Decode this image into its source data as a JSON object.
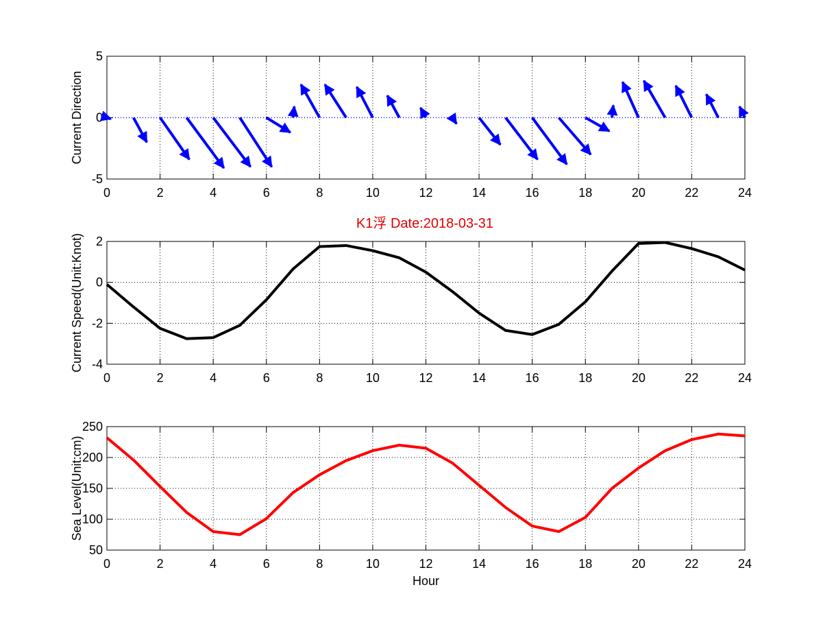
{
  "figure_title": "K1浮    Date:2018-03-31",
  "chart_data": [
    {
      "type": "quiver",
      "ylabel": "Current Direction",
      "xlabel": "",
      "xlim": [
        0,
        24
      ],
      "ylim": [
        -5,
        5
      ],
      "xticks": [
        0,
        2,
        4,
        6,
        8,
        10,
        12,
        14,
        16,
        18,
        20,
        22,
        24
      ],
      "yticks": [
        -5,
        0,
        5
      ],
      "grid": true,
      "color": "#0000ff",
      "arrows": [
        {
          "x": 0,
          "u": 0.15,
          "v": -0.1
        },
        {
          "x": 1,
          "u": 0.5,
          "v": -2.0
        },
        {
          "x": 2,
          "u": 1.1,
          "v": -3.4
        },
        {
          "x": 3,
          "u": 1.4,
          "v": -4.1
        },
        {
          "x": 4,
          "u": 1.4,
          "v": -4.0
        },
        {
          "x": 5,
          "u": 1.2,
          "v": -4.0
        },
        {
          "x": 6,
          "u": 0.9,
          "v": -1.2
        },
        {
          "x": 7,
          "u": 0.05,
          "v": 0.9
        },
        {
          "x": 8,
          "u": -0.7,
          "v": 2.7
        },
        {
          "x": 9,
          "u": -0.8,
          "v": 2.7
        },
        {
          "x": 10,
          "u": -0.6,
          "v": 2.5
        },
        {
          "x": 11,
          "u": -0.45,
          "v": 1.8
        },
        {
          "x": 12,
          "u": -0.2,
          "v": 0.8
        },
        {
          "x": 13,
          "u": 0.15,
          "v": -0.5
        },
        {
          "x": 14,
          "u": 0.8,
          "v": -2.2
        },
        {
          "x": 15,
          "u": 1.2,
          "v": -3.4
        },
        {
          "x": 16,
          "u": 1.3,
          "v": -3.8
        },
        {
          "x": 17,
          "u": 1.2,
          "v": -3.0
        },
        {
          "x": 18,
          "u": 0.9,
          "v": -1.1
        },
        {
          "x": 19,
          "u": 0.05,
          "v": 1.0
        },
        {
          "x": 20,
          "u": -0.6,
          "v": 2.9
        },
        {
          "x": 21,
          "u": -0.8,
          "v": 3.0
        },
        {
          "x": 22,
          "u": -0.6,
          "v": 2.6
        },
        {
          "x": 23,
          "u": -0.45,
          "v": 1.9
        },
        {
          "x": 24,
          "u": -0.2,
          "v": 0.9
        }
      ]
    },
    {
      "type": "line",
      "ylabel": "Current Speed(Unit:Knot)",
      "xlabel": "",
      "xlim": [
        0,
        24
      ],
      "ylim": [
        -4,
        2
      ],
      "xticks": [
        0,
        2,
        4,
        6,
        8,
        10,
        12,
        14,
        16,
        18,
        20,
        22,
        24
      ],
      "yticks": [
        -4,
        -2,
        0,
        2
      ],
      "grid": true,
      "color": "#000000",
      "x": [
        0,
        1,
        2,
        3,
        4,
        5,
        6,
        7,
        8,
        9,
        10,
        11,
        12,
        13,
        14,
        15,
        16,
        17,
        18,
        19,
        20,
        21,
        22,
        23,
        24
      ],
      "y": [
        -0.1,
        -1.2,
        -2.25,
        -2.75,
        -2.7,
        -2.1,
        -0.85,
        0.65,
        1.75,
        1.8,
        1.55,
        1.2,
        0.5,
        -0.45,
        -1.5,
        -2.35,
        -2.55,
        -2.05,
        -0.95,
        0.55,
        1.9,
        1.95,
        1.65,
        1.25,
        0.6
      ]
    },
    {
      "type": "line",
      "ylabel": "Sea Level(Unit:cm)",
      "xlabel": "Hour",
      "xlim": [
        0,
        24
      ],
      "ylim": [
        50,
        250
      ],
      "xticks": [
        0,
        2,
        4,
        6,
        8,
        10,
        12,
        14,
        16,
        18,
        20,
        22,
        24
      ],
      "yticks": [
        50,
        100,
        150,
        200,
        250
      ],
      "grid": true,
      "color": "#ff0000",
      "x": [
        0,
        1,
        2,
        3,
        4,
        5,
        6,
        7,
        8,
        9,
        10,
        11,
        12,
        13,
        14,
        15,
        16,
        17,
        18,
        19,
        20,
        21,
        22,
        23,
        24
      ],
      "y": [
        232,
        196,
        153,
        111,
        80,
        75,
        101,
        143,
        172,
        195,
        211,
        220,
        215,
        191,
        155,
        119,
        89,
        80,
        103,
        150,
        183,
        211,
        229,
        238,
        235
      ]
    }
  ]
}
